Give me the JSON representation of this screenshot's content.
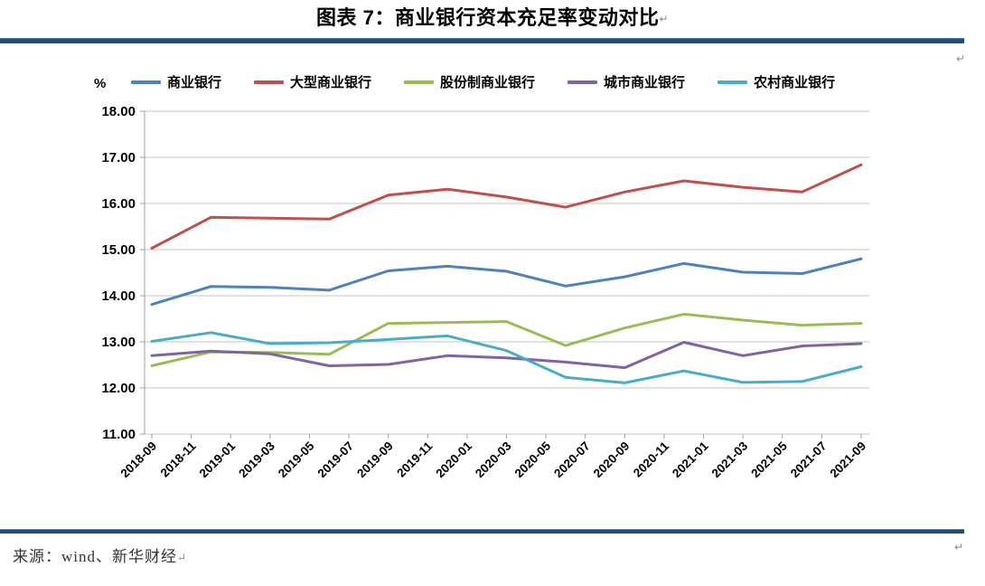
{
  "title": "图表 7：商业银行资本充足率变动对比",
  "pilcrow": "↵",
  "unit_label": "%",
  "source": "来源：wind、新华财经",
  "colors": {
    "rule_bar": "#1F4E79",
    "gridline": "#C6C6C6",
    "axis": "#9e9e9e",
    "tick_text": "#000000"
  },
  "chart_data": {
    "type": "line",
    "title": "图表 7：商业银行资本充足率变动对比",
    "ylabel": "%",
    "ylim": [
      11.0,
      18.0
    ],
    "y_tick_step": 1.0,
    "y_tick_labels": [
      "11.00",
      "12.00",
      "13.00",
      "14.00",
      "15.00",
      "16.00",
      "17.00",
      "18.00"
    ],
    "grid": true,
    "legend_position": "top",
    "x_tick_labels": [
      "2018-09",
      "2018-11",
      "2019-01",
      "2019-03",
      "2019-05",
      "2019-07",
      "2019-09",
      "2019-11",
      "2020-01",
      "2020-03",
      "2020-05",
      "2020-07",
      "2020-09",
      "2020-11",
      "2021-01",
      "2021-03",
      "2021-05",
      "2021-07",
      "2021-09"
    ],
    "x_months_span": 36,
    "data_point_labels": [
      "2018-09",
      "2018-12",
      "2019-03",
      "2019-06",
      "2019-09",
      "2019-12",
      "2020-03",
      "2020-06",
      "2020-09",
      "2020-12",
      "2021-03",
      "2021-06",
      "2021-09"
    ],
    "data_months": [
      0,
      3,
      6,
      9,
      12,
      15,
      18,
      21,
      24,
      27,
      30,
      33,
      36
    ],
    "series": [
      {
        "name": "商业银行",
        "color": "#4F81BD",
        "values": [
          13.81,
          14.2,
          14.18,
          14.12,
          14.54,
          14.64,
          14.53,
          14.21,
          14.41,
          14.7,
          14.51,
          14.48,
          14.8
        ]
      },
      {
        "name": "大型商业银行",
        "color": "#C0504D",
        "values": [
          15.03,
          15.7,
          15.68,
          15.66,
          16.18,
          16.31,
          16.14,
          15.92,
          16.25,
          16.49,
          16.35,
          16.25,
          16.84
        ]
      },
      {
        "name": "股份制商业银行",
        "color": "#9BBB59",
        "values": [
          12.48,
          12.78,
          12.77,
          12.73,
          13.4,
          13.42,
          13.44,
          12.92,
          13.3,
          13.6,
          13.47,
          13.36,
          13.4
        ]
      },
      {
        "name": "城市商业银行",
        "color": "#8064A2",
        "values": [
          12.7,
          12.8,
          12.74,
          12.48,
          12.51,
          12.7,
          12.65,
          12.56,
          12.44,
          12.99,
          12.7,
          12.91,
          12.96
        ]
      },
      {
        "name": "农村商业银行",
        "color": "#4BACC6",
        "values": [
          13.01,
          13.2,
          12.96,
          12.98,
          13.05,
          13.13,
          12.81,
          12.23,
          12.11,
          12.37,
          12.12,
          12.14,
          12.46
        ]
      }
    ]
  }
}
